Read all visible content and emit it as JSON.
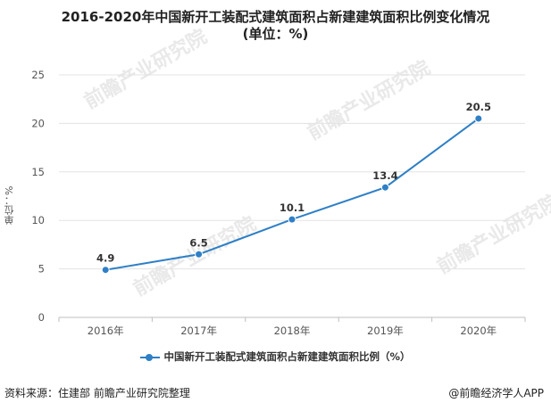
{
  "title": {
    "line1": "2016-2020年中国新开工装配式建筑面积占新建建筑面积比例变化情况",
    "line2": "(单位：%)"
  },
  "watermark_text": "前瞻产业研究院",
  "footer": {
    "source": "资料来源：住建部 前瞻产业研究院整理",
    "brand": "@前瞻经济学人APP"
  },
  "colors": {
    "series": "#2e7fc6",
    "grid": "#e3e3e3",
    "axis": "#bfbfbf"
  },
  "chart_data": {
    "type": "line",
    "title": "2016-2020年中国新开工装配式建筑面积占新建建筑面积比例变化情况",
    "subtitle": "(单位：%)",
    "xlabel": "",
    "ylabel": "单位：%",
    "categories": [
      "2016年",
      "2017年",
      "2018年",
      "2019年",
      "2020年"
    ],
    "series": [
      {
        "name": "中国新开工装配式建筑面积占新建建筑面积比例（%）",
        "values": [
          4.9,
          6.5,
          10.1,
          13.4,
          20.5
        ],
        "labels": [
          "4.9",
          "6.5",
          "10.1",
          "13.4",
          "20.5"
        ]
      }
    ],
    "ylim": [
      0,
      25
    ],
    "yticks": [
      0,
      5,
      10,
      15,
      20,
      25
    ],
    "grid": true,
    "legend": "bottom"
  }
}
